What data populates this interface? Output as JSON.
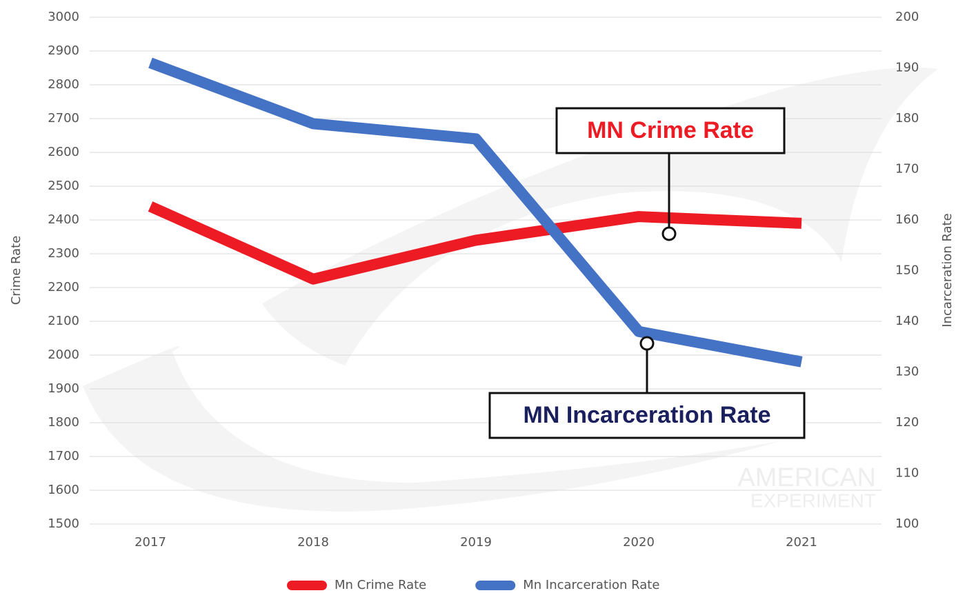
{
  "chart_data": {
    "type": "line",
    "categories": [
      "2017",
      "2018",
      "2019",
      "2020",
      "2021"
    ],
    "series": [
      {
        "name": "Mn Crime Rate",
        "color": "#ed1c24",
        "values": [
          2440,
          2225,
          2340,
          2410,
          2390
        ]
      },
      {
        "name": "Mn Incarceration Rate",
        "color": "#4472c4",
        "axis": "y2",
        "values": [
          191,
          179,
          176,
          138,
          132
        ]
      }
    ],
    "ylabel": "Crime Rate",
    "y2label": "Incarceration Rate",
    "ylim": [
      1500,
      3000
    ],
    "yticks": [
      1500,
      1600,
      1700,
      1800,
      1900,
      2000,
      2100,
      2200,
      2300,
      2400,
      2500,
      2600,
      2700,
      2800,
      2900,
      3000
    ],
    "y2lim": [
      100,
      200
    ],
    "y2ticks": [
      100,
      110,
      120,
      130,
      140,
      150,
      160,
      170,
      180,
      190,
      200
    ],
    "grid": true,
    "legend": "bottom",
    "annotations": [
      {
        "text": "MN Crime Rate",
        "color": "#ed1c24"
      },
      {
        "text": "MN Incarceration Rate",
        "color": "#1a1f5e"
      }
    ],
    "watermark": [
      "AMERICAN",
      "EXPERIMENT"
    ]
  }
}
